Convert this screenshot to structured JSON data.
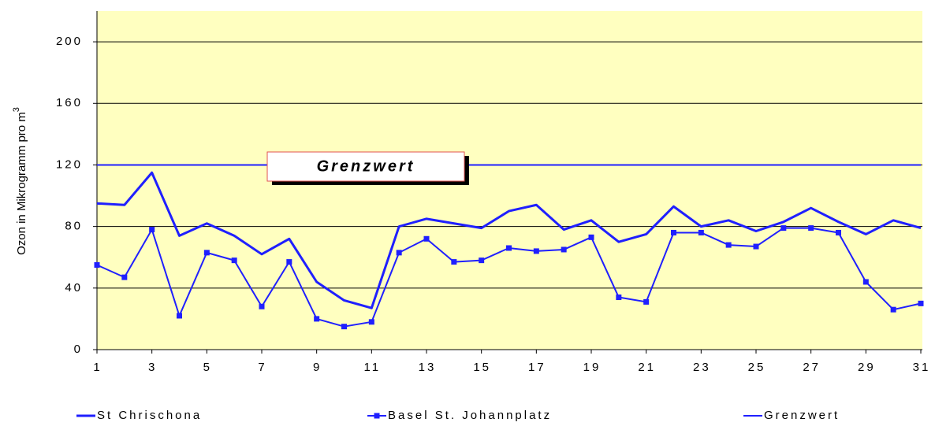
{
  "chart_data": {
    "type": "line",
    "y_label": "Ozon in Mikrogramm pro m",
    "y_label_sup": "3",
    "annotation": "Grenzwert",
    "x": [
      1,
      2,
      3,
      4,
      5,
      6,
      7,
      8,
      9,
      10,
      11,
      12,
      13,
      14,
      15,
      16,
      17,
      18,
      19,
      20,
      21,
      22,
      23,
      24,
      25,
      26,
      27,
      28,
      29,
      30,
      31
    ],
    "xlim": [
      1,
      31
    ],
    "xticks": [
      1,
      3,
      5,
      7,
      9,
      11,
      13,
      15,
      17,
      19,
      21,
      23,
      25,
      27,
      29,
      31
    ],
    "ylim": [
      0,
      220
    ],
    "yticks": [
      0,
      40,
      80,
      120,
      160,
      200
    ],
    "grid": true,
    "background": "#ffffc0",
    "legend": "bottom",
    "series": [
      {
        "name": "St Chrischona",
        "color": "#1f1fff",
        "width": 3,
        "markers": false,
        "values": [
          95,
          94,
          115,
          74,
          82,
          74,
          62,
          72,
          44,
          32,
          27,
          80,
          85,
          82,
          79,
          90,
          94,
          78,
          84,
          70,
          75,
          93,
          80,
          84,
          77,
          83,
          92,
          83,
          75,
          84,
          79
        ]
      },
      {
        "name": "Basel St. Johannplatz",
        "color": "#1f1fff",
        "width": 2,
        "markers": true,
        "values": [
          55,
          47,
          78,
          22,
          63,
          58,
          28,
          57,
          20,
          15,
          18,
          63,
          72,
          57,
          58,
          66,
          64,
          65,
          73,
          34,
          31,
          76,
          76,
          68,
          67,
          79,
          79,
          76,
          44,
          26,
          30
        ]
      },
      {
        "name": "Grenzwert",
        "color": "#1f1fff",
        "width": 2,
        "markers": false,
        "values": [
          120,
          120,
          120,
          120,
          120,
          120,
          120,
          120,
          120,
          120,
          120,
          120,
          120,
          120,
          120,
          120,
          120,
          120,
          120,
          120,
          120,
          120,
          120,
          120,
          120,
          120,
          120,
          120,
          120,
          120,
          120
        ]
      }
    ]
  }
}
